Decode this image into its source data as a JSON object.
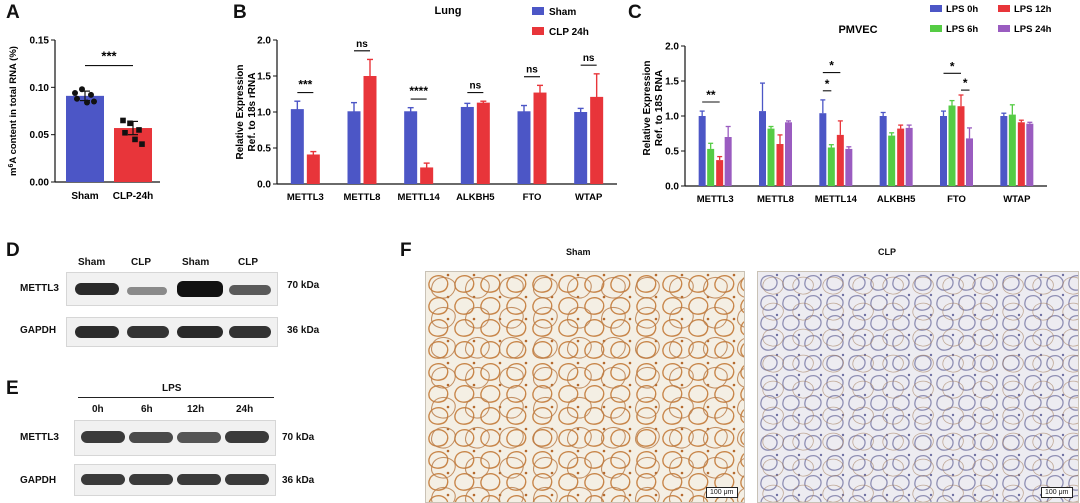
{
  "panels": {
    "A": "A",
    "B": "B",
    "C": "C",
    "D": "D",
    "E": "E",
    "F": "F"
  },
  "colors": {
    "blue": "#4c56c6",
    "red": "#e8353a",
    "green": "#55cc44",
    "purple": "#9a5cc0",
    "black": "#111111"
  },
  "chart_data": [
    {
      "id": "A",
      "type": "bar",
      "title": "",
      "ylabel": "m6A content in total RNA (%)",
      "ylabel_sup": "6",
      "categories": [
        "Sham",
        "CLP-24h"
      ],
      "values": [
        0.091,
        0.057
      ],
      "errors": [
        0.005,
        0.007
      ],
      "points": [
        [
          0.094,
          0.098,
          0.092,
          0.088,
          0.084,
          0.085
        ],
        [
          0.065,
          0.062,
          0.055,
          0.052,
          0.045,
          0.04
        ]
      ],
      "yticks": [
        "0.00",
        "0.05",
        "0.10",
        "0.15"
      ],
      "ylim": [
        0,
        0.15
      ],
      "annotation": "***",
      "series_colors": [
        "#4c56c6",
        "#e8353a"
      ]
    },
    {
      "id": "B",
      "type": "bar",
      "title": "Lung",
      "ylabel": "Relative Expression",
      "ylabel2": "Ref. to 18s rRNA",
      "categories": [
        "METTL3",
        "METTL8",
        "METTL14",
        "ALKBH5",
        "FTO",
        "WTAP"
      ],
      "series": [
        {
          "name": "Sham",
          "values": [
            1.04,
            1.01,
            1.01,
            1.07,
            1.01,
            1.0
          ],
          "errors": [
            0.11,
            0.12,
            0.05,
            0.05,
            0.08,
            0.05
          ]
        },
        {
          "name": "CLP 24h",
          "values": [
            0.41,
            1.5,
            0.23,
            1.13,
            1.27,
            1.21
          ],
          "errors": [
            0.04,
            0.23,
            0.06,
            0.02,
            0.1,
            0.32
          ]
        }
      ],
      "sig": [
        "***",
        "ns",
        "****",
        "ns",
        "ns",
        "ns"
      ],
      "yticks": [
        "0.0",
        "0.5",
        "1.0",
        "1.5",
        "2.0"
      ],
      "ylim": [
        0,
        2.0
      ],
      "legend": "top-right",
      "series_colors": [
        "#4c56c6",
        "#e8353a"
      ]
    },
    {
      "id": "C",
      "type": "bar",
      "title": "PMVEC",
      "ylabel": "Relative Expression",
      "ylabel2": "Ref. to 18S RNA",
      "categories": [
        "METTL3",
        "METTL8",
        "METTL14",
        "ALKBH5",
        "FTO",
        "WTAP"
      ],
      "series": [
        {
          "name": "LPS 0h",
          "values": [
            1.0,
            1.07,
            1.04,
            1.0,
            1.0,
            1.0
          ],
          "errors": [
            0.07,
            0.4,
            0.19,
            0.05,
            0.07,
            0.04
          ]
        },
        {
          "name": "LPS 6h",
          "values": [
            0.53,
            0.82,
            0.55,
            0.72,
            1.15,
            1.02
          ],
          "errors": [
            0.08,
            0.03,
            0.04,
            0.04,
            0.07,
            0.14
          ]
        },
        {
          "name": "LPS 12h",
          "values": [
            0.37,
            0.6,
            0.73,
            0.82,
            1.14,
            0.91
          ],
          "errors": [
            0.05,
            0.13,
            0.2,
            0.05,
            0.16,
            0.03
          ]
        },
        {
          "name": "LPS 24h",
          "values": [
            0.7,
            0.91,
            0.53,
            0.83,
            0.68,
            0.89
          ],
          "errors": [
            0.15,
            0.02,
            0.03,
            0.04,
            0.15,
            0.02
          ]
        }
      ],
      "sig_labels": [
        "**",
        "*",
        "*",
        "*",
        "*"
      ],
      "yticks": [
        "0.0",
        "0.5",
        "1.0",
        "1.5",
        "2.0"
      ],
      "ylim": [
        0,
        2.0
      ],
      "legend": "top-right",
      "series_colors": [
        "#4c56c6",
        "#55cc44",
        "#e8353a",
        "#9a5cc0"
      ]
    }
  ],
  "blotD": {
    "lanes": [
      "Sham",
      "CLP",
      "Sham",
      "CLP"
    ],
    "rows": [
      "METTL3",
      "GAPDH"
    ],
    "sizes": [
      "70 kDa",
      "36 kDa"
    ]
  },
  "blotE": {
    "treatment": "LPS",
    "lanes": [
      "0h",
      "6h",
      "12h",
      "24h"
    ],
    "rows": [
      "METTL3",
      "GAPDH"
    ],
    "sizes": [
      "70 kDa",
      "36 kDa"
    ]
  },
  "histology": {
    "left_title": "Sham",
    "right_title": "CLP",
    "scalebar": "100 μm"
  }
}
